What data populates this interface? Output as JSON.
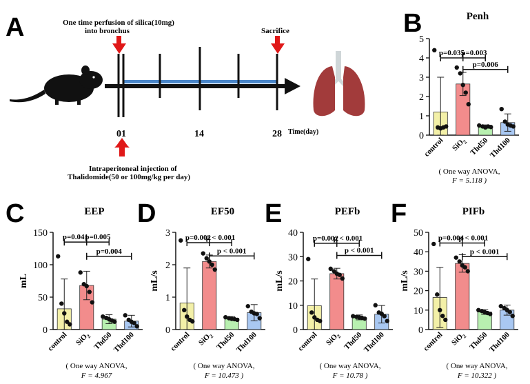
{
  "panel_a": {
    "letter": "A",
    "top_label_line1": "One time perfusion of silica(10mg)",
    "top_label_line2": "into bronchus",
    "sacrifice_label": "Sacrifice",
    "day_labels": [
      "0",
      "1",
      "14",
      "28"
    ],
    "time_label": "Time(day)",
    "bottom_label_line1": "Intraperitoneal injection of",
    "bottom_label_line2": "Thalidomide(50 or 100mg/kg per day)"
  },
  "colors": {
    "control": "#f3f0a8",
    "SiO2": "#f28c8c",
    "Thd50": "#b8f0b0",
    "Thd100": "#a9c8f2",
    "arrow": "#e01818",
    "timeline_bar": "#4a86c9",
    "lung": "#a23b3b",
    "trachea": "#cfd6d8"
  },
  "chart_data": [
    {
      "panel": "B",
      "title": "Penh",
      "type": "bar",
      "ylabel": "",
      "ylim": [
        0,
        5
      ],
      "yticks": [
        "0",
        "1",
        "2",
        "3",
        "4",
        "5"
      ],
      "categories": [
        "control",
        "SiO2",
        "Thd50",
        "Thd100"
      ],
      "values": [
        1.2,
        2.65,
        0.45,
        0.65
      ],
      "errors": [
        1.8,
        0.6,
        0.08,
        0.45
      ],
      "points": [
        [
          4.4,
          0.4,
          0.35,
          0.4,
          0.45
        ],
        [
          3.5,
          3.2,
          2.6,
          2.2,
          1.6
        ],
        [
          0.5,
          0.45,
          0.4,
          0.45,
          0.42
        ],
        [
          1.35,
          0.7,
          0.55,
          0.5,
          0.45
        ]
      ],
      "comparisons": [
        {
          "from": 0,
          "to": 1,
          "label": "p=0.035",
          "y": 4.0
        },
        {
          "from": 1,
          "to": 2,
          "label": "p=0.003",
          "y": 4.0
        },
        {
          "from": 1,
          "to": 3,
          "label": "p=0.006",
          "y": 3.4
        }
      ],
      "anova_line1": "( One way ANOVA,",
      "anova_line2": "F = 5.118 )"
    },
    {
      "panel": "C",
      "title": "EEP",
      "type": "bar",
      "ylabel": "mL",
      "ylim": [
        0,
        150
      ],
      "yticks": [
        "0",
        "50",
        "100",
        "150"
      ],
      "categories": [
        "control",
        "SiO2",
        "Thd50",
        "Thd100"
      ],
      "values": [
        32,
        68,
        16,
        13
      ],
      "errors": [
        46,
        22,
        7,
        9
      ],
      "points": [
        [
          113,
          40,
          25,
          12,
          8
        ],
        [
          88,
          70,
          67,
          58,
          42
        ],
        [
          20,
          18,
          16,
          14,
          12
        ],
        [
          22,
          15,
          12,
          10,
          5
        ]
      ],
      "comparisons": [
        {
          "from": 0,
          "to": 1,
          "label": "p=0.041",
          "y": 135
        },
        {
          "from": 1,
          "to": 2,
          "label": "p=0.005",
          "y": 135
        },
        {
          "from": 1,
          "to": 3,
          "label": "p=0.004",
          "y": 113
        }
      ],
      "anova_line1": "( One way ANOVA,",
      "anova_line2": "F = 4.967"
    },
    {
      "panel": "D",
      "title": "EF50",
      "type": "bar",
      "ylabel": "mL/s",
      "ylim": [
        0,
        3
      ],
      "yticks": [
        "0",
        "1",
        "2",
        "3"
      ],
      "categories": [
        "control",
        "SiO2",
        "Thd50",
        "Thd100"
      ],
      "values": [
        0.82,
        2.1,
        0.35,
        0.52
      ],
      "errors": [
        1.08,
        0.2,
        0.05,
        0.25
      ],
      "points": [
        [
          2.75,
          0.6,
          0.4,
          0.3,
          0.25
        ],
        [
          2.35,
          2.2,
          2.1,
          2.0,
          1.85
        ],
        [
          0.38,
          0.35,
          0.33,
          0.32,
          0.3
        ],
        [
          0.72,
          0.55,
          0.5,
          0.48,
          0.35
        ]
      ],
      "comparisons": [
        {
          "from": 0,
          "to": 1,
          "label": "p=0.002",
          "y": 2.68
        },
        {
          "from": 1,
          "to": 2,
          "label": "p < 0.001",
          "y": 2.68
        },
        {
          "from": 1,
          "to": 3,
          "label": "p < 0.001",
          "y": 2.27
        }
      ],
      "anova_line1": "( One way ANOVA,",
      "anova_line2": "F = 10.473 )"
    },
    {
      "panel": "E",
      "title": "PEFb",
      "type": "bar",
      "ylabel": "mL/s",
      "ylim": [
        0,
        40
      ],
      "yticks": [
        "0",
        "10",
        "20",
        "30",
        "40"
      ],
      "categories": [
        "control",
        "SiO2",
        "Thd50",
        "Thd100"
      ],
      "values": [
        9.8,
        23,
        5,
        6.3
      ],
      "errors": [
        11,
        2.2,
        1,
        3.6
      ],
      "points": [
        [
          29,
          7,
          5,
          4,
          3.5
        ],
        [
          25,
          24,
          23,
          22.5,
          21
        ],
        [
          5.5,
          5.2,
          5,
          4.8,
          4.5
        ],
        [
          10,
          7,
          6.5,
          5.5,
          3.5
        ]
      ],
      "comparisons": [
        {
          "from": 0,
          "to": 1,
          "label": "p=0.002",
          "y": 35.5
        },
        {
          "from": 1,
          "to": 2,
          "label": "p < 0.001",
          "y": 35.5
        },
        {
          "from": 1,
          "to": 3,
          "label": "p < 0.001",
          "y": 30.5
        }
      ],
      "anova_line1": "( One way ANOVA,",
      "anova_line2": "F = 10.78 )"
    },
    {
      "panel": "F",
      "title": "PIFb",
      "type": "bar",
      "ylabel": "mL/s",
      "ylim": [
        0,
        50
      ],
      "yticks": [
        "0",
        "10",
        "20",
        "30",
        "40",
        "50"
      ],
      "categories": [
        "control",
        "SiO2",
        "Thd50",
        "Thd100"
      ],
      "values": [
        16.5,
        34,
        9,
        10
      ],
      "errors": [
        15.5,
        4.5,
        1.2,
        2.6
      ],
      "points": [
        [
          44,
          18,
          10,
          7,
          5
        ],
        [
          37,
          35,
          33,
          32,
          30
        ],
        [
          10,
          9.5,
          9,
          8.5,
          8
        ],
        [
          12,
          11,
          10,
          9,
          7
        ]
      ],
      "comparisons": [
        {
          "from": 0,
          "to": 1,
          "label": "p=0.004",
          "y": 44.5
        },
        {
          "from": 1,
          "to": 2,
          "label": "p < 0.001",
          "y": 44.5
        },
        {
          "from": 1,
          "to": 3,
          "label": "p < 0.001",
          "y": 37.5
        }
      ],
      "anova_line1": "( One way ANOVA,",
      "anova_line2": "F = 10.322 )"
    }
  ]
}
